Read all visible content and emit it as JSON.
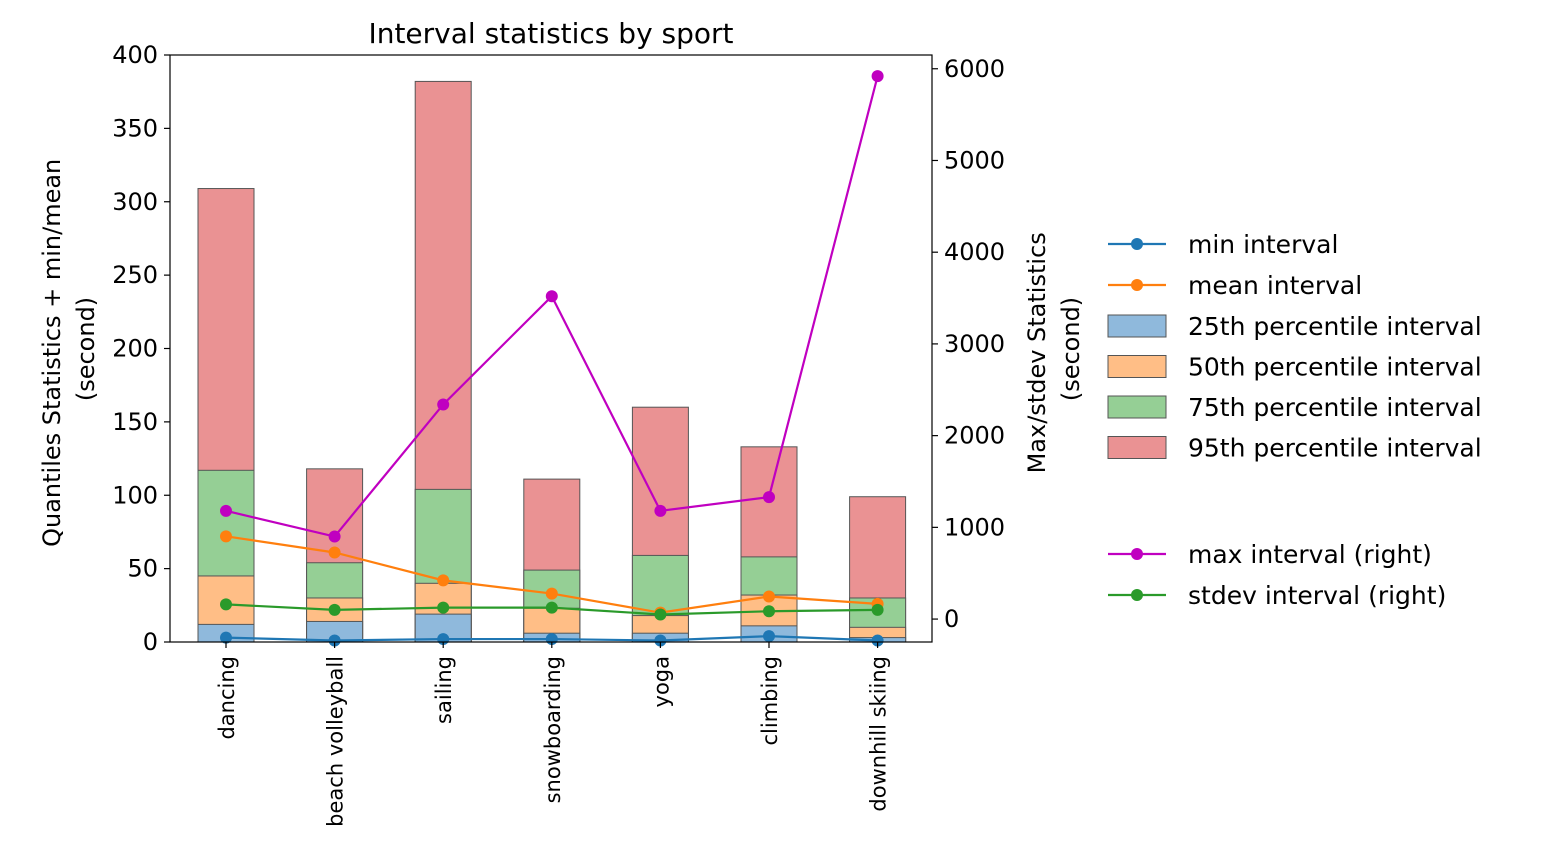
{
  "chart_data": {
    "type": "bar",
    "title": "Interval statistics by sport",
    "ylabel_left": [
      "Quantiles Statistics + min/mean",
      "(second)"
    ],
    "ylabel_right": [
      "Max/stdev Statistics",
      "(second)"
    ],
    "ylim_left": [
      0,
      400
    ],
    "ylim_right": [
      -250,
      6150
    ],
    "yticks_left": [
      0,
      50,
      100,
      150,
      200,
      250,
      300,
      350,
      400
    ],
    "yticks_right": [
      0,
      1000,
      2000,
      3000,
      4000,
      5000,
      6000
    ],
    "categories": [
      "dancing",
      "beach volleyball",
      "sailing",
      "snowboarding",
      "yoga",
      "climbing",
      "downhill skiing"
    ],
    "bar_series": [
      {
        "name": "25th percentile interval",
        "color": "#8fb9dc",
        "values": [
          12,
          14,
          19,
          6,
          6,
          11,
          3
        ]
      },
      {
        "name": "50th percentile interval",
        "color": "#ffbe86",
        "values": [
          45,
          30,
          40,
          23,
          18,
          32,
          10
        ]
      },
      {
        "name": "75th percentile interval",
        "color": "#95cf95",
        "values": [
          117,
          54,
          104,
          49,
          59,
          58,
          30
        ]
      },
      {
        "name": "95th percentile interval",
        "color": "#ea9293",
        "values": [
          309,
          118,
          382,
          111,
          160,
          133,
          99
        ]
      }
    ],
    "line_series_left": [
      {
        "name": "min interval",
        "color": "#1f77b4",
        "values": [
          3,
          1,
          2,
          2,
          1,
          4,
          1
        ]
      },
      {
        "name": "mean interval",
        "color": "#ff7f0e",
        "values": [
          72,
          61,
          42,
          33,
          20,
          31,
          26
        ]
      }
    ],
    "line_series_right": [
      {
        "name": "max interval (right)",
        "color": "#c000c0",
        "values": [
          1180,
          900,
          2340,
          3520,
          1180,
          1330,
          5920
        ]
      },
      {
        "name": "stdev interval (right)",
        "color": "#2a9a2a",
        "values": [
          160,
          100,
          125,
          125,
          50,
          85,
          100
        ]
      }
    ]
  }
}
